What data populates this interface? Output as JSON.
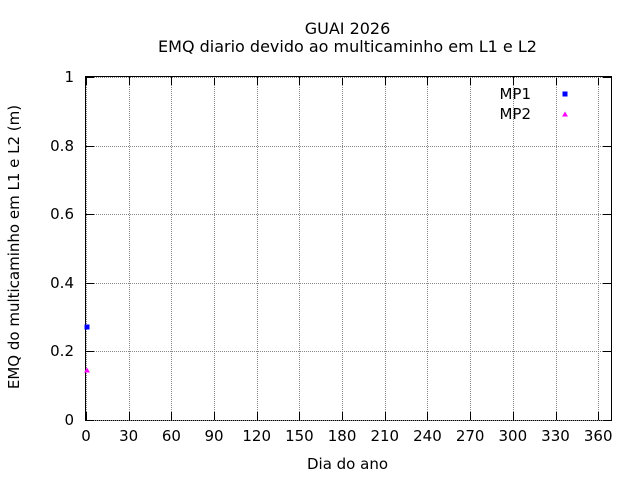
{
  "chart_data": {
    "type": "scatter",
    "title": "GUAI 2026",
    "subtitle": "EMQ diario devido ao multicaminho em L1 e L2",
    "xlabel": "Dia do ano",
    "ylabel": "EMQ do multicaminho em L1 e L2 (m)",
    "xlim": [
      0,
      369
    ],
    "ylim": [
      0,
      1
    ],
    "xticks": [
      0,
      30,
      60,
      90,
      120,
      150,
      180,
      210,
      240,
      270,
      300,
      330,
      360
    ],
    "yticks": [
      0,
      0.2,
      0.4,
      0.6,
      0.8,
      1
    ],
    "ytick_labels": [
      "0",
      "0.2",
      "0.4",
      "0.6",
      "0.8",
      "1"
    ],
    "grid": true,
    "legend_position": "top-right",
    "series": [
      {
        "name": "MP1",
        "color": "#0000ff",
        "marker": "square",
        "points": [
          {
            "x": 1,
            "y": 0.27
          }
        ]
      },
      {
        "name": "MP2",
        "color": "#ff00ff",
        "marker": "triangle",
        "points": [
          {
            "x": 1,
            "y": 0.145
          }
        ]
      }
    ]
  },
  "colors": {
    "background": "#ffffff",
    "axis": "#000000",
    "grid": "#888888",
    "text": "#000000"
  }
}
